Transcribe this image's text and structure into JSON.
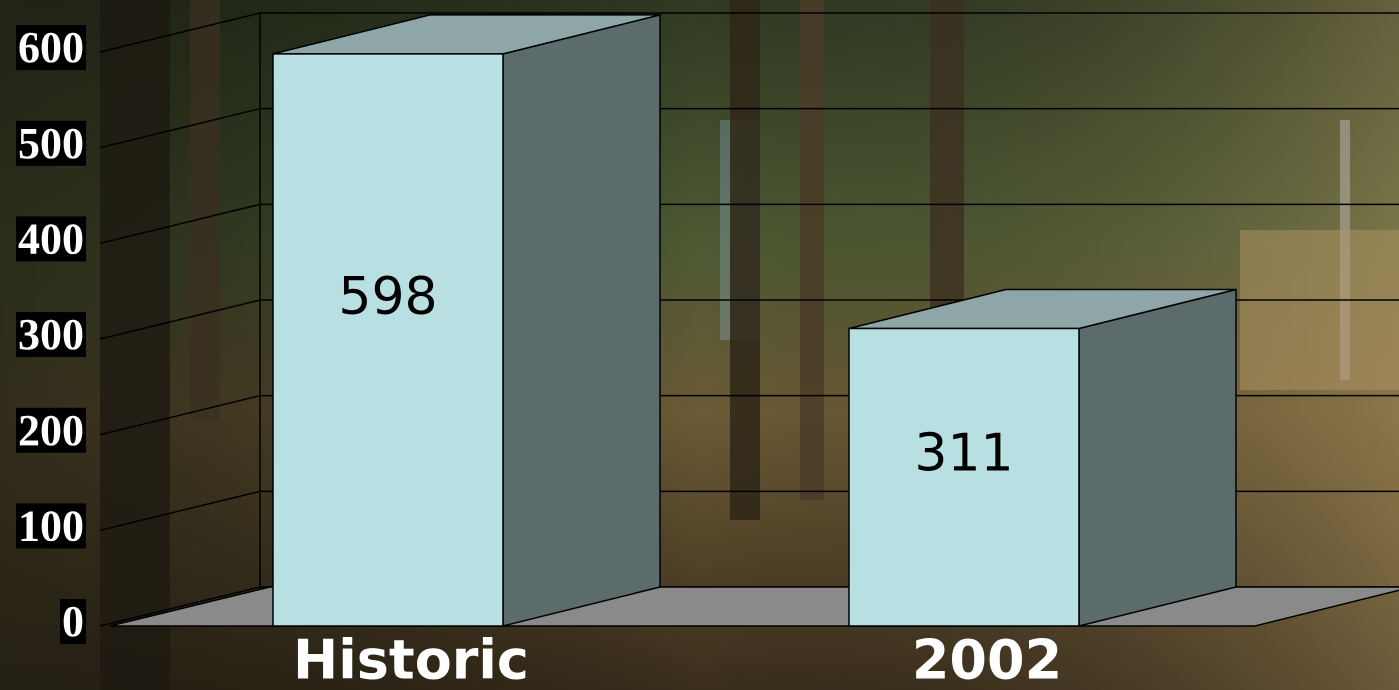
{
  "chart_data": {
    "type": "bar3d",
    "categories": [
      "Historic",
      "2002"
    ],
    "values": [
      598,
      311
    ],
    "ylim": [
      0,
      600
    ],
    "yticks": [
      0,
      100,
      200,
      300,
      400,
      500,
      600
    ],
    "grid": true,
    "color": "#b8dfe2"
  }
}
